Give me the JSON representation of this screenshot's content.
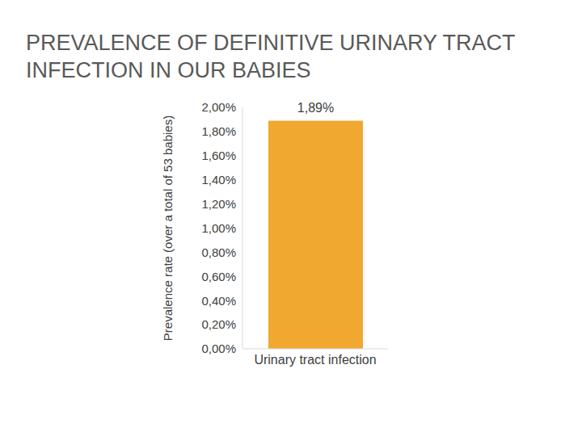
{
  "chart_data": {
    "type": "bar",
    "title": "PREVALENCE OF DEFINITIVE URINARY TRACT INFECTION IN OUR BABIES",
    "y_label": "Prevalence rate (over a total of 53 babies)",
    "categories": [
      "Urinary tract infection"
    ],
    "values": [
      1.89
    ],
    "value_labels": [
      "1,89%"
    ],
    "color": "#f0a830",
    "ylim": [
      0,
      2
    ],
    "yticks": [
      {
        "value": 0,
        "label": "0,00%"
      },
      {
        "value": 0.2,
        "label": "0,20%"
      },
      {
        "value": 0.4,
        "label": "0,40%"
      },
      {
        "value": 0.6,
        "label": "0,60%"
      },
      {
        "value": 0.8,
        "label": "0,80%"
      },
      {
        "value": 1,
        "label": "1,00%"
      },
      {
        "value": 1.2,
        "label": "1,20%"
      },
      {
        "value": 1.4,
        "label": "1,40%"
      },
      {
        "value": 1.6,
        "label": "1,60%"
      },
      {
        "value": 1.8,
        "label": "1,80%"
      },
      {
        "value": 2,
        "label": "2,00%"
      }
    ],
    "grid": false,
    "data_labels": true
  }
}
